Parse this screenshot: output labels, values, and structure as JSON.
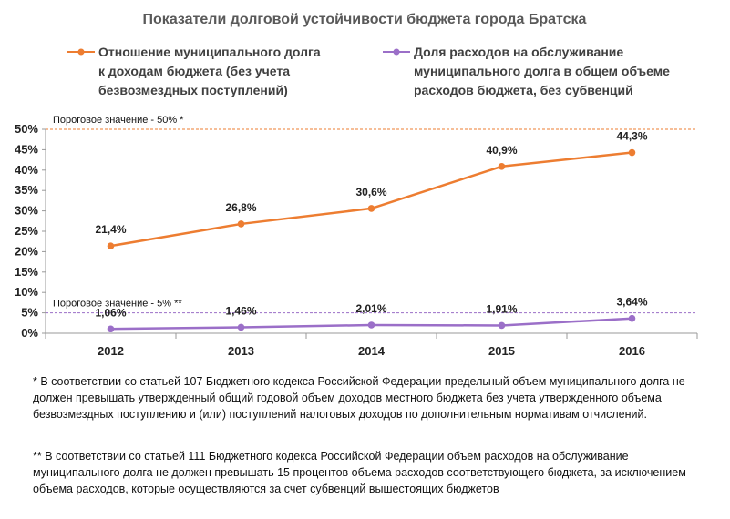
{
  "chart_data": {
    "type": "line",
    "title": "Показатели долговой устойчивости бюджета города Братска",
    "categories": [
      "2012",
      "2013",
      "2014",
      "2015",
      "2016"
    ],
    "yticks": [
      "0%",
      "5%",
      "10%",
      "15%",
      "20%",
      "25%",
      "30%",
      "35%",
      "40%",
      "45%",
      "50%"
    ],
    "ylim": [
      0,
      50
    ],
    "series": [
      {
        "name_lines": [
          "Отношение муниципального долга",
          "к доходам бюджета (без учета",
          "безвозмездных поступлений)"
        ],
        "color": "#ED7D31",
        "values": [
          21.4,
          26.8,
          30.6,
          40.9,
          44.3
        ],
        "labels": [
          "21,4%",
          "26,8%",
          "30,6%",
          "40,9%",
          "44,3%"
        ]
      },
      {
        "name_lines": [
          "Доля расходов на обслуживание",
          "муниципального долга в общем объеме",
          " расходов бюджета, без субвенций"
        ],
        "color": "#9B6FC8",
        "values": [
          1.06,
          1.46,
          2.01,
          1.91,
          3.64
        ],
        "labels": [
          "1,06%",
          "1,46%",
          "2,01%",
          "1,91%",
          "3,64%"
        ]
      }
    ],
    "thresholds": [
      {
        "value": 50,
        "label": "Пороговое значение  - 50% *",
        "color": "#ED7D31"
      },
      {
        "value": 5,
        "label": "Пороговое значение  - 5% **",
        "color": "#9B6FC8"
      }
    ],
    "grid": false
  },
  "notes": {
    "note1": "* В соответствии со статьей 107 Бюджетного кодекса Российской Федерации предельный объем муниципального долга не должен превышать утвержденный общий годовой объем доходов местного бюджета без учета утвержденного объема безвозмездных поступлению и (или) поступлений налоговых доходов по дополнительным нормативам отчислений.",
    "note2": "** В соответствии со статьей 111  Бюджетного кодекса Российской Федерации объем расходов на обслуживание муниципального долга не должен превышать 15 процентов объема расходов соответствующего бюджета, за исключением объема расходов, которые осуществляются за счет субвенций вышестоящих бюджетов"
  }
}
